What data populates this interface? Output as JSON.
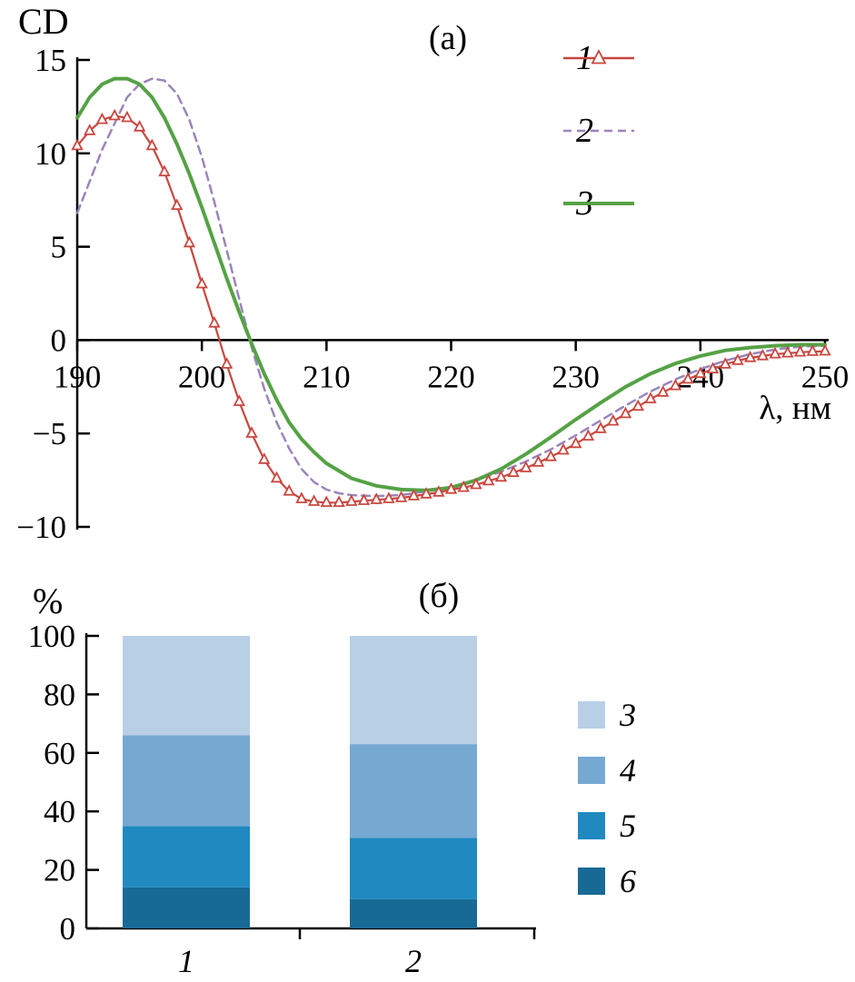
{
  "figure": {
    "panel_a": {
      "panel_label": "(a)",
      "ylabel": "CD",
      "xlabel": "λ, нм",
      "legend": [
        {
          "label": "1",
          "style": "triangle-line",
          "color": "#c9473f"
        },
        {
          "label": "2",
          "style": "dashed",
          "color": "#9b85bb"
        },
        {
          "label": "3",
          "style": "solid",
          "color": "#55a245"
        }
      ]
    },
    "panel_b": {
      "panel_label": "(б)",
      "ylabel": "%",
      "categories": [
        "1",
        "2"
      ],
      "legend": [
        {
          "label": "3",
          "color": "#b9cfe6"
        },
        {
          "label": "4",
          "color": "#76a9d2"
        },
        {
          "label": "5",
          "color": "#2089c0"
        },
        {
          "label": "6",
          "color": "#186a96"
        }
      ]
    }
  },
  "chart_data": [
    {
      "type": "line",
      "panel": "(a)",
      "xlabel": "λ, нм",
      "ylabel": "CD",
      "xlim": [
        190,
        250
      ],
      "ylim": [
        -10,
        15
      ],
      "xticks": [
        190,
        200,
        210,
        220,
        230,
        240,
        250
      ],
      "yticks": [
        -10,
        -5,
        0,
        5,
        10,
        15
      ],
      "legend_position": "top-right",
      "grid": false,
      "series": [
        {
          "name": "2",
          "style": "dashed",
          "color": "#9b85bb",
          "width": 2.5,
          "x": [
            190,
            192,
            194,
            195,
            196,
            197,
            198,
            199,
            200,
            201,
            202,
            203,
            204,
            205,
            206,
            207,
            208,
            209,
            210,
            211,
            212,
            214,
            216,
            218,
            220,
            222,
            224,
            226,
            228,
            230,
            232,
            234,
            236,
            238,
            240,
            242,
            244,
            246,
            248,
            250
          ],
          "y": [
            6.8,
            10.2,
            13.0,
            13.7,
            14.0,
            13.9,
            13.2,
            11.8,
            9.8,
            7.4,
            4.8,
            2.2,
            -0.4,
            -2.6,
            -4.4,
            -5.8,
            -6.9,
            -7.6,
            -8.0,
            -8.2,
            -8.3,
            -8.35,
            -8.3,
            -8.1,
            -7.85,
            -7.5,
            -7.05,
            -6.5,
            -5.85,
            -5.1,
            -4.3,
            -3.5,
            -2.75,
            -2.1,
            -1.55,
            -1.1,
            -0.75,
            -0.5,
            -0.35,
            -0.3
          ]
        },
        {
          "name": "3",
          "style": "solid",
          "color": "#55a245",
          "width": 4,
          "x": [
            190,
            191,
            192,
            193,
            194,
            195,
            196,
            197,
            198,
            199,
            200,
            201,
            202,
            203,
            204,
            205,
            206,
            207,
            208,
            209,
            210,
            212,
            214,
            216,
            218,
            220,
            222,
            224,
            226,
            228,
            230,
            232,
            234,
            236,
            238,
            240,
            242,
            244,
            246,
            248,
            250
          ],
          "y": [
            11.9,
            13.0,
            13.7,
            14.0,
            14.0,
            13.7,
            13.0,
            11.9,
            10.5,
            8.9,
            7.1,
            5.2,
            3.3,
            1.5,
            -0.2,
            -1.8,
            -3.2,
            -4.4,
            -5.3,
            -6.0,
            -6.6,
            -7.4,
            -7.8,
            -8.0,
            -8.05,
            -7.9,
            -7.5,
            -6.9,
            -6.1,
            -5.2,
            -4.25,
            -3.35,
            -2.5,
            -1.8,
            -1.25,
            -0.85,
            -0.55,
            -0.4,
            -0.3,
            -0.25,
            -0.25
          ]
        },
        {
          "name": "1",
          "style": "solid",
          "marker": "open-triangle",
          "color": "#c9473f",
          "width": 2.2,
          "x": [
            190,
            191,
            192,
            193,
            194,
            195,
            196,
            197,
            198,
            199,
            200,
            201,
            202,
            203,
            204,
            205,
            206,
            207,
            208,
            209,
            210,
            211,
            212,
            213,
            214,
            215,
            216,
            217,
            218,
            219,
            220,
            221,
            222,
            223,
            224,
            225,
            226,
            227,
            228,
            229,
            230,
            231,
            232,
            233,
            234,
            235,
            236,
            237,
            238,
            239,
            240,
            241,
            242,
            243,
            244,
            245,
            246,
            247,
            248,
            249,
            250
          ],
          "y": [
            10.4,
            11.2,
            11.8,
            12.0,
            11.9,
            11.4,
            10.4,
            9.0,
            7.2,
            5.2,
            3.0,
            0.9,
            -1.3,
            -3.3,
            -5.0,
            -6.4,
            -7.4,
            -8.1,
            -8.5,
            -8.65,
            -8.7,
            -8.7,
            -8.65,
            -8.6,
            -8.55,
            -8.5,
            -8.45,
            -8.35,
            -8.25,
            -8.15,
            -8.0,
            -7.9,
            -7.75,
            -7.55,
            -7.35,
            -7.1,
            -6.85,
            -6.55,
            -6.25,
            -5.9,
            -5.55,
            -5.15,
            -4.75,
            -4.35,
            -3.95,
            -3.55,
            -3.15,
            -2.8,
            -2.45,
            -2.1,
            -1.8,
            -1.55,
            -1.3,
            -1.1,
            -0.95,
            -0.85,
            -0.75,
            -0.7,
            -0.65,
            -0.62,
            -0.6
          ]
        }
      ]
    },
    {
      "type": "bar",
      "panel": "(б)",
      "ylabel": "%",
      "stacked": true,
      "ylim": [
        0,
        100
      ],
      "yticks": [
        0,
        20,
        40,
        60,
        80,
        100
      ],
      "categories": [
        "1",
        "2"
      ],
      "series_bottom_to_top": [
        {
          "name": "6",
          "color": "#186a96",
          "values": [
            14,
            10
          ]
        },
        {
          "name": "5",
          "color": "#2089c0",
          "values": [
            21,
            21
          ]
        },
        {
          "name": "4",
          "color": "#76a9d2",
          "values": [
            31,
            32
          ]
        },
        {
          "name": "3",
          "color": "#b9cfe6",
          "values": [
            34,
            37
          ]
        }
      ]
    }
  ]
}
